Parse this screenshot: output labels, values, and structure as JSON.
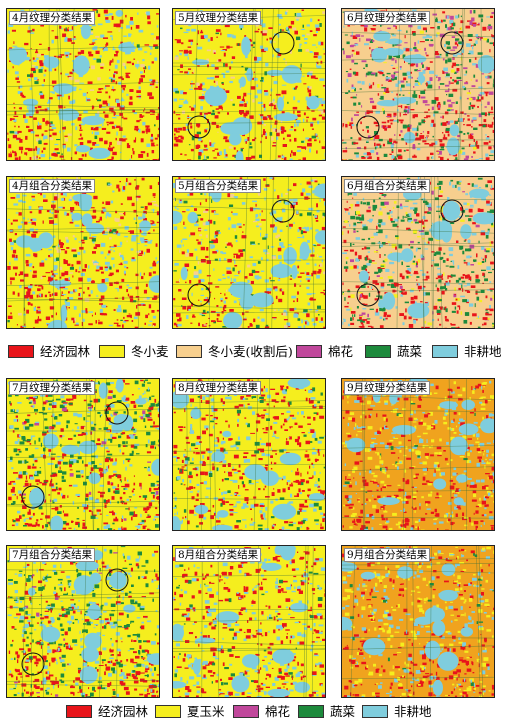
{
  "top_group": {
    "panels": [
      {
        "label": "4月纹理分类结果",
        "palette": "apr"
      },
      {
        "label": "5月纹理分类结果",
        "palette": "may"
      },
      {
        "label": "6月纹理分类结果",
        "palette": "jun"
      },
      {
        "label": "4月组合分类结果",
        "palette": "apr"
      },
      {
        "label": "5月组合分类结果",
        "palette": "may"
      },
      {
        "label": "6月组合分类结果",
        "palette": "jun2"
      }
    ],
    "legend": [
      {
        "label": "经济园林",
        "color": "#e8141a"
      },
      {
        "label": "冬小麦",
        "color": "#f5ee1e"
      },
      {
        "label": "冬小麦(收割后)",
        "color": "#f7cf8e"
      },
      {
        "label": "棉花",
        "color": "#c0479b"
      },
      {
        "label": "蔬菜",
        "color": "#1d8a3c"
      },
      {
        "label": "非耕地",
        "color": "#7fcddd"
      }
    ]
  },
  "bottom_group": {
    "panels": [
      {
        "label": "7月纹理分类结果",
        "palette": "jul"
      },
      {
        "label": "8月纹理分类结果",
        "palette": "aug"
      },
      {
        "label": "9月纹理分类结果",
        "palette": "sep"
      },
      {
        "label": "7月组合分类结果",
        "palette": "jul"
      },
      {
        "label": "8月组合分类结果",
        "palette": "aug"
      },
      {
        "label": "9月组合分类结果",
        "palette": "sep"
      }
    ],
    "legend": [
      {
        "label": "经济园林",
        "color": "#e8141a"
      },
      {
        "label": "夏玉米",
        "color": "#f5ee1e"
      },
      {
        "label": "棉花",
        "color": "#c0479b"
      },
      {
        "label": "蔬菜",
        "color": "#1d8a3c"
      },
      {
        "label": "非耕地",
        "color": "#7fcddd"
      }
    ]
  }
}
